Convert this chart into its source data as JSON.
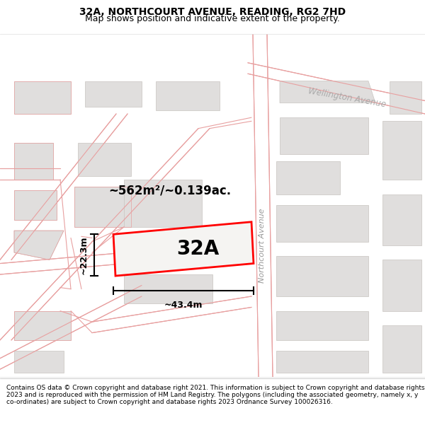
{
  "title": "32A, NORTHCOURT AVENUE, READING, RG2 7HD",
  "subtitle": "Map shows position and indicative extent of the property.",
  "bg_color": "#f8f7f5",
  "road_line_color": "#e8a0a0",
  "road_fill_color": "#ffffff",
  "building_color": "#e0dedd",
  "building_edge_color": "#c8c4c0",
  "highlight_color": "#ff0000",
  "property_label": "32A",
  "area_label": "~562m²/~0.139ac.",
  "width_label": "~43.4m",
  "height_label": "~22.3m",
  "street_label_1": "Northcourt Avenue",
  "street_label_2": "Wellington Avenue",
  "footer_text": "Contains OS data © Crown copyright and database right 2021. This information is subject to Crown copyright and database rights 2023 and is reproduced with the permission of HM Land Registry. The polygons (including the associated geometry, namely x, y co-ordinates) are subject to Crown copyright and database rights 2023 Ordnance Survey 100026316.",
  "figsize": [
    6.0,
    6.25
  ],
  "dpi": 100,
  "title_fontsize": 10,
  "subtitle_fontsize": 9,
  "footer_fontsize": 6.5
}
